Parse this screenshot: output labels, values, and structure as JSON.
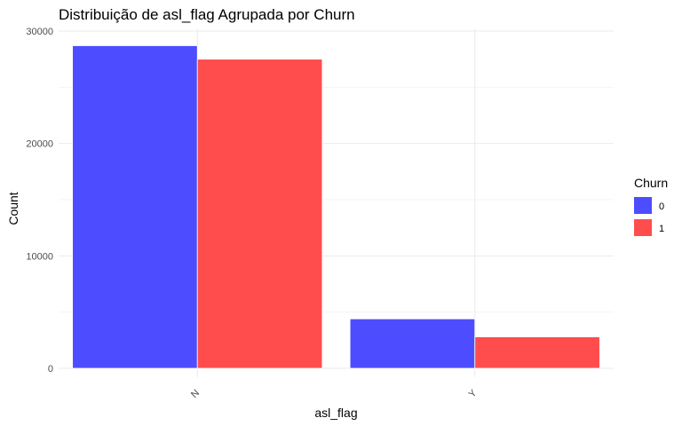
{
  "chart_data": {
    "type": "bar",
    "title": "Distribuição de asl_flag Agrupada por Churn",
    "xlabel": "asl_flag",
    "ylabel": "Count",
    "categories": [
      "N",
      "Y"
    ],
    "series": [
      {
        "name": "0",
        "values": [
          28700,
          4400
        ],
        "color": "#4d4dff"
      },
      {
        "name": "1",
        "values": [
          27500,
          2800
        ],
        "color": "#ff4d4d"
      }
    ],
    "ylim": [
      0,
      30000
    ],
    "yticks": [
      0,
      10000,
      20000,
      30000
    ],
    "ytick_labels": [
      "0",
      "10000",
      "20000",
      "30000"
    ],
    "legend": {
      "title": "Churn",
      "position": "right"
    },
    "grid": true
  }
}
